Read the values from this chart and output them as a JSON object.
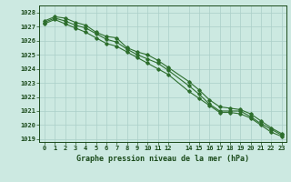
{
  "title": "Graphe pression niveau de la mer (hPa)",
  "bg_color": "#cce9e1",
  "grid_color": "#aacfc8",
  "line_color": "#2d6e2d",
  "text_color": "#1a4a1a",
  "xlim": [
    -0.5,
    23.5
  ],
  "ylim": [
    1018.8,
    1028.5
  ],
  "yticks": [
    1019,
    1020,
    1021,
    1022,
    1023,
    1024,
    1025,
    1026,
    1027,
    1028
  ],
  "xticks": [
    0,
    1,
    2,
    3,
    4,
    5,
    6,
    7,
    8,
    9,
    10,
    11,
    12,
    14,
    15,
    16,
    17,
    18,
    19,
    20,
    21,
    22,
    23
  ],
  "xtick_labels": [
    "0",
    "1",
    "2",
    "3",
    "4",
    "5",
    "6",
    "7",
    "8",
    "9",
    "10",
    "11",
    "12",
    "14",
    "15",
    "16",
    "17",
    "18",
    "19",
    "20",
    "21",
    "22",
    "23"
  ],
  "line1_x": [
    0,
    1,
    2,
    3,
    4,
    5,
    6,
    7,
    8,
    9,
    10,
    11,
    12,
    14,
    15,
    16,
    17,
    18,
    19,
    20,
    21,
    22,
    23
  ],
  "line1_y": [
    1027.4,
    1027.7,
    1027.6,
    1027.3,
    1027.1,
    1026.6,
    1026.3,
    1026.2,
    1025.5,
    1025.2,
    1025.0,
    1024.6,
    1024.1,
    1023.1,
    1022.5,
    1021.8,
    1021.3,
    1021.2,
    1021.1,
    1020.8,
    1020.3,
    1019.8,
    1019.4
  ],
  "line2_x": [
    0,
    1,
    2,
    3,
    4,
    5,
    6,
    7,
    8,
    9,
    10,
    11,
    12,
    14,
    15,
    16,
    17,
    18,
    19,
    20,
    21,
    22,
    23
  ],
  "line2_y": [
    1027.3,
    1027.6,
    1027.4,
    1027.1,
    1026.9,
    1026.5,
    1026.1,
    1025.9,
    1025.4,
    1025.0,
    1024.7,
    1024.4,
    1023.9,
    1022.8,
    1022.2,
    1021.5,
    1021.0,
    1021.0,
    1021.0,
    1020.6,
    1020.1,
    1019.7,
    1019.3
  ],
  "line3_x": [
    0,
    1,
    2,
    3,
    4,
    5,
    6,
    7,
    8,
    9,
    10,
    11,
    12,
    14,
    15,
    16,
    17,
    18,
    19,
    20,
    21,
    22,
    23
  ],
  "line3_y": [
    1027.2,
    1027.5,
    1027.2,
    1026.9,
    1026.6,
    1026.2,
    1025.8,
    1025.6,
    1025.2,
    1024.8,
    1024.4,
    1024.0,
    1023.6,
    1022.4,
    1021.9,
    1021.4,
    1020.9,
    1020.9,
    1020.8,
    1020.5,
    1020.0,
    1019.5,
    1019.2
  ]
}
